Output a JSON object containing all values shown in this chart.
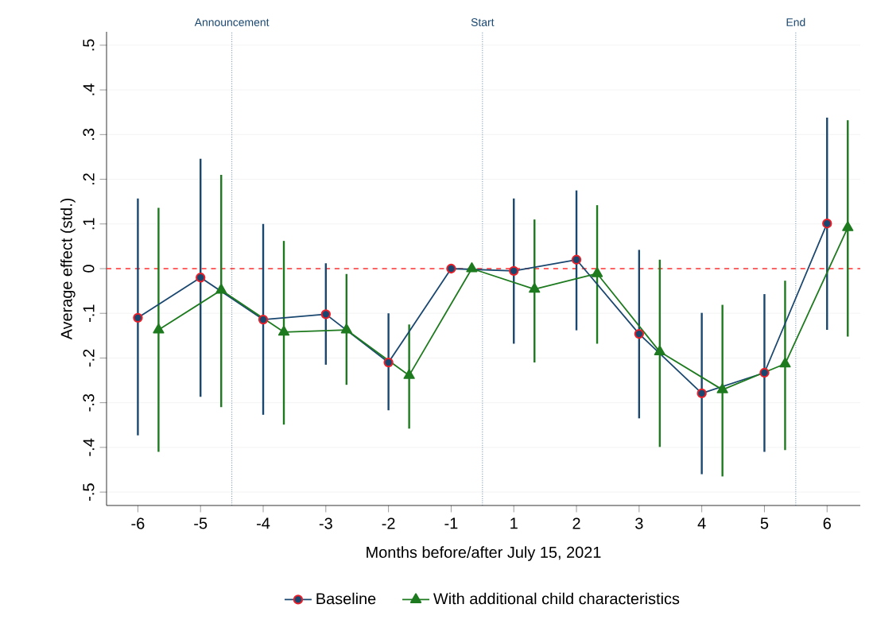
{
  "chart_data": {
    "type": "line",
    "xlabel": "Months before/after July 15, 2021",
    "ylabel": "Average effect (std.)",
    "categories": [
      "-6",
      "-5",
      "-4",
      "-3",
      "-2",
      "-1",
      "1",
      "2",
      "3",
      "4",
      "5",
      "6"
    ],
    "series": [
      {
        "name": "Baseline",
        "color": "#1a476f",
        "marker": "circle",
        "values": [
          -0.11,
          -0.02,
          -0.114,
          -0.102,
          -0.21,
          0,
          -0.005,
          0.02,
          -0.146,
          -0.279,
          -0.233,
          0.101
        ],
        "errors": [
          [
            -0.373,
            0.157
          ],
          [
            -0.287,
            0.246
          ],
          [
            -0.327,
            0.1
          ],
          [
            -0.215,
            0.012
          ],
          [
            -0.317,
            -0.1
          ],
          null,
          [
            -0.168,
            0.157
          ],
          [
            -0.138,
            0.175
          ],
          [
            -0.335,
            0.042
          ],
          [
            -0.46,
            -0.099
          ],
          [
            -0.41,
            -0.057
          ],
          [
            -0.137,
            0.338
          ]
        ]
      },
      {
        "name": "With additional child characteristics",
        "color": "#1e7a1e",
        "marker": "triangle",
        "values": [
          -0.137,
          -0.048,
          -0.142,
          -0.137,
          -0.239,
          0,
          -0.046,
          -0.011,
          -0.186,
          -0.271,
          -0.213,
          0.092
        ],
        "errors": [
          [
            -0.41,
            0.136
          ],
          [
            -0.31,
            0.21
          ],
          [
            -0.349,
            0.062
          ],
          [
            -0.26,
            -0.012
          ],
          [
            -0.358,
            -0.125
          ],
          null,
          [
            -0.21,
            0.11
          ],
          [
            -0.168,
            0.142
          ],
          [
            -0.399,
            0.02
          ],
          [
            -0.465,
            -0.081
          ],
          [
            -0.406,
            -0.027
          ],
          [
            -0.152,
            0.332
          ]
        ]
      }
    ],
    "ylim": [
      -0.53,
      0.53
    ],
    "yticks": [
      {
        "value": -0.5,
        "label": "-.5"
      },
      {
        "value": -0.4,
        "label": "-.4"
      },
      {
        "value": -0.3,
        "label": "-.3"
      },
      {
        "value": -0.2,
        "label": "-.2"
      },
      {
        "value": -0.1,
        "label": "-.1"
      },
      0,
      {
        "value": 0.1,
        "label": ".1"
      },
      {
        "value": 0.2,
        "label": ".2"
      },
      {
        "value": 0.3,
        "label": ".3"
      },
      {
        "value": 0.4,
        "label": ".4"
      },
      {
        "value": 0.5,
        "label": ".5"
      }
    ],
    "ref_lines": [
      {
        "axis": "y",
        "value": 0,
        "color": "#ff3030",
        "line_style": "dashed"
      }
    ],
    "annotations": [
      "Announcement",
      "Start",
      "End"
    ],
    "grid": "y",
    "legend": "bottom"
  }
}
